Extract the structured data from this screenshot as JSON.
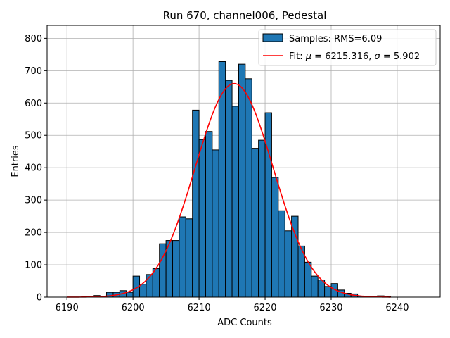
{
  "chart_data": {
    "type": "bar",
    "title": "Run 670, channel006, Pedestal",
    "xlabel": "ADC Counts",
    "ylabel": "Entries",
    "xlim": [
      6187,
      6246.5
    ],
    "ylim": [
      0,
      840
    ],
    "grid": true,
    "xticks": [
      6190,
      6200,
      6210,
      6220,
      6230,
      6240
    ],
    "yticks": [
      0,
      100,
      200,
      300,
      400,
      500,
      600,
      700,
      800
    ],
    "legend_position": "top-right",
    "bin_width": 1,
    "histogram": {
      "name": "Samples: RMS=6.09",
      "color": "#1f77b4",
      "bin_starts": [
        6194,
        6195,
        6196,
        6197,
        6198,
        6199,
        6200,
        6201,
        6202,
        6203,
        6204,
        6205,
        6206,
        6207,
        6208,
        6209,
        6210,
        6211,
        6212,
        6213,
        6214,
        6215,
        6216,
        6217,
        6218,
        6219,
        6220,
        6221,
        6222,
        6223,
        6224,
        6225,
        6226,
        6227,
        6228,
        6229,
        6230,
        6231,
        6232,
        6233,
        6234,
        6235,
        6236,
        6237,
        6238
      ],
      "counts": [
        5,
        3,
        15,
        15,
        20,
        15,
        65,
        40,
        70,
        88,
        165,
        175,
        175,
        248,
        242,
        578,
        487,
        512,
        455,
        728,
        670,
        590,
        720,
        675,
        460,
        485,
        570,
        370,
        267,
        205,
        250,
        158,
        108,
        65,
        53,
        33,
        42,
        22,
        12,
        10,
        3,
        2,
        2,
        4,
        2
      ]
    },
    "fit": {
      "name_prefix": "Fit: ",
      "name_mu_sym": "μ",
      "name_mid": " = 6215.316, ",
      "name_sigma_sym": "σ",
      "name_suffix": " = 5.902",
      "color": "#ff0000",
      "mu": 6215.316,
      "sigma": 5.902,
      "amplitude": 660,
      "x_range": [
        6190,
        6239
      ]
    }
  }
}
